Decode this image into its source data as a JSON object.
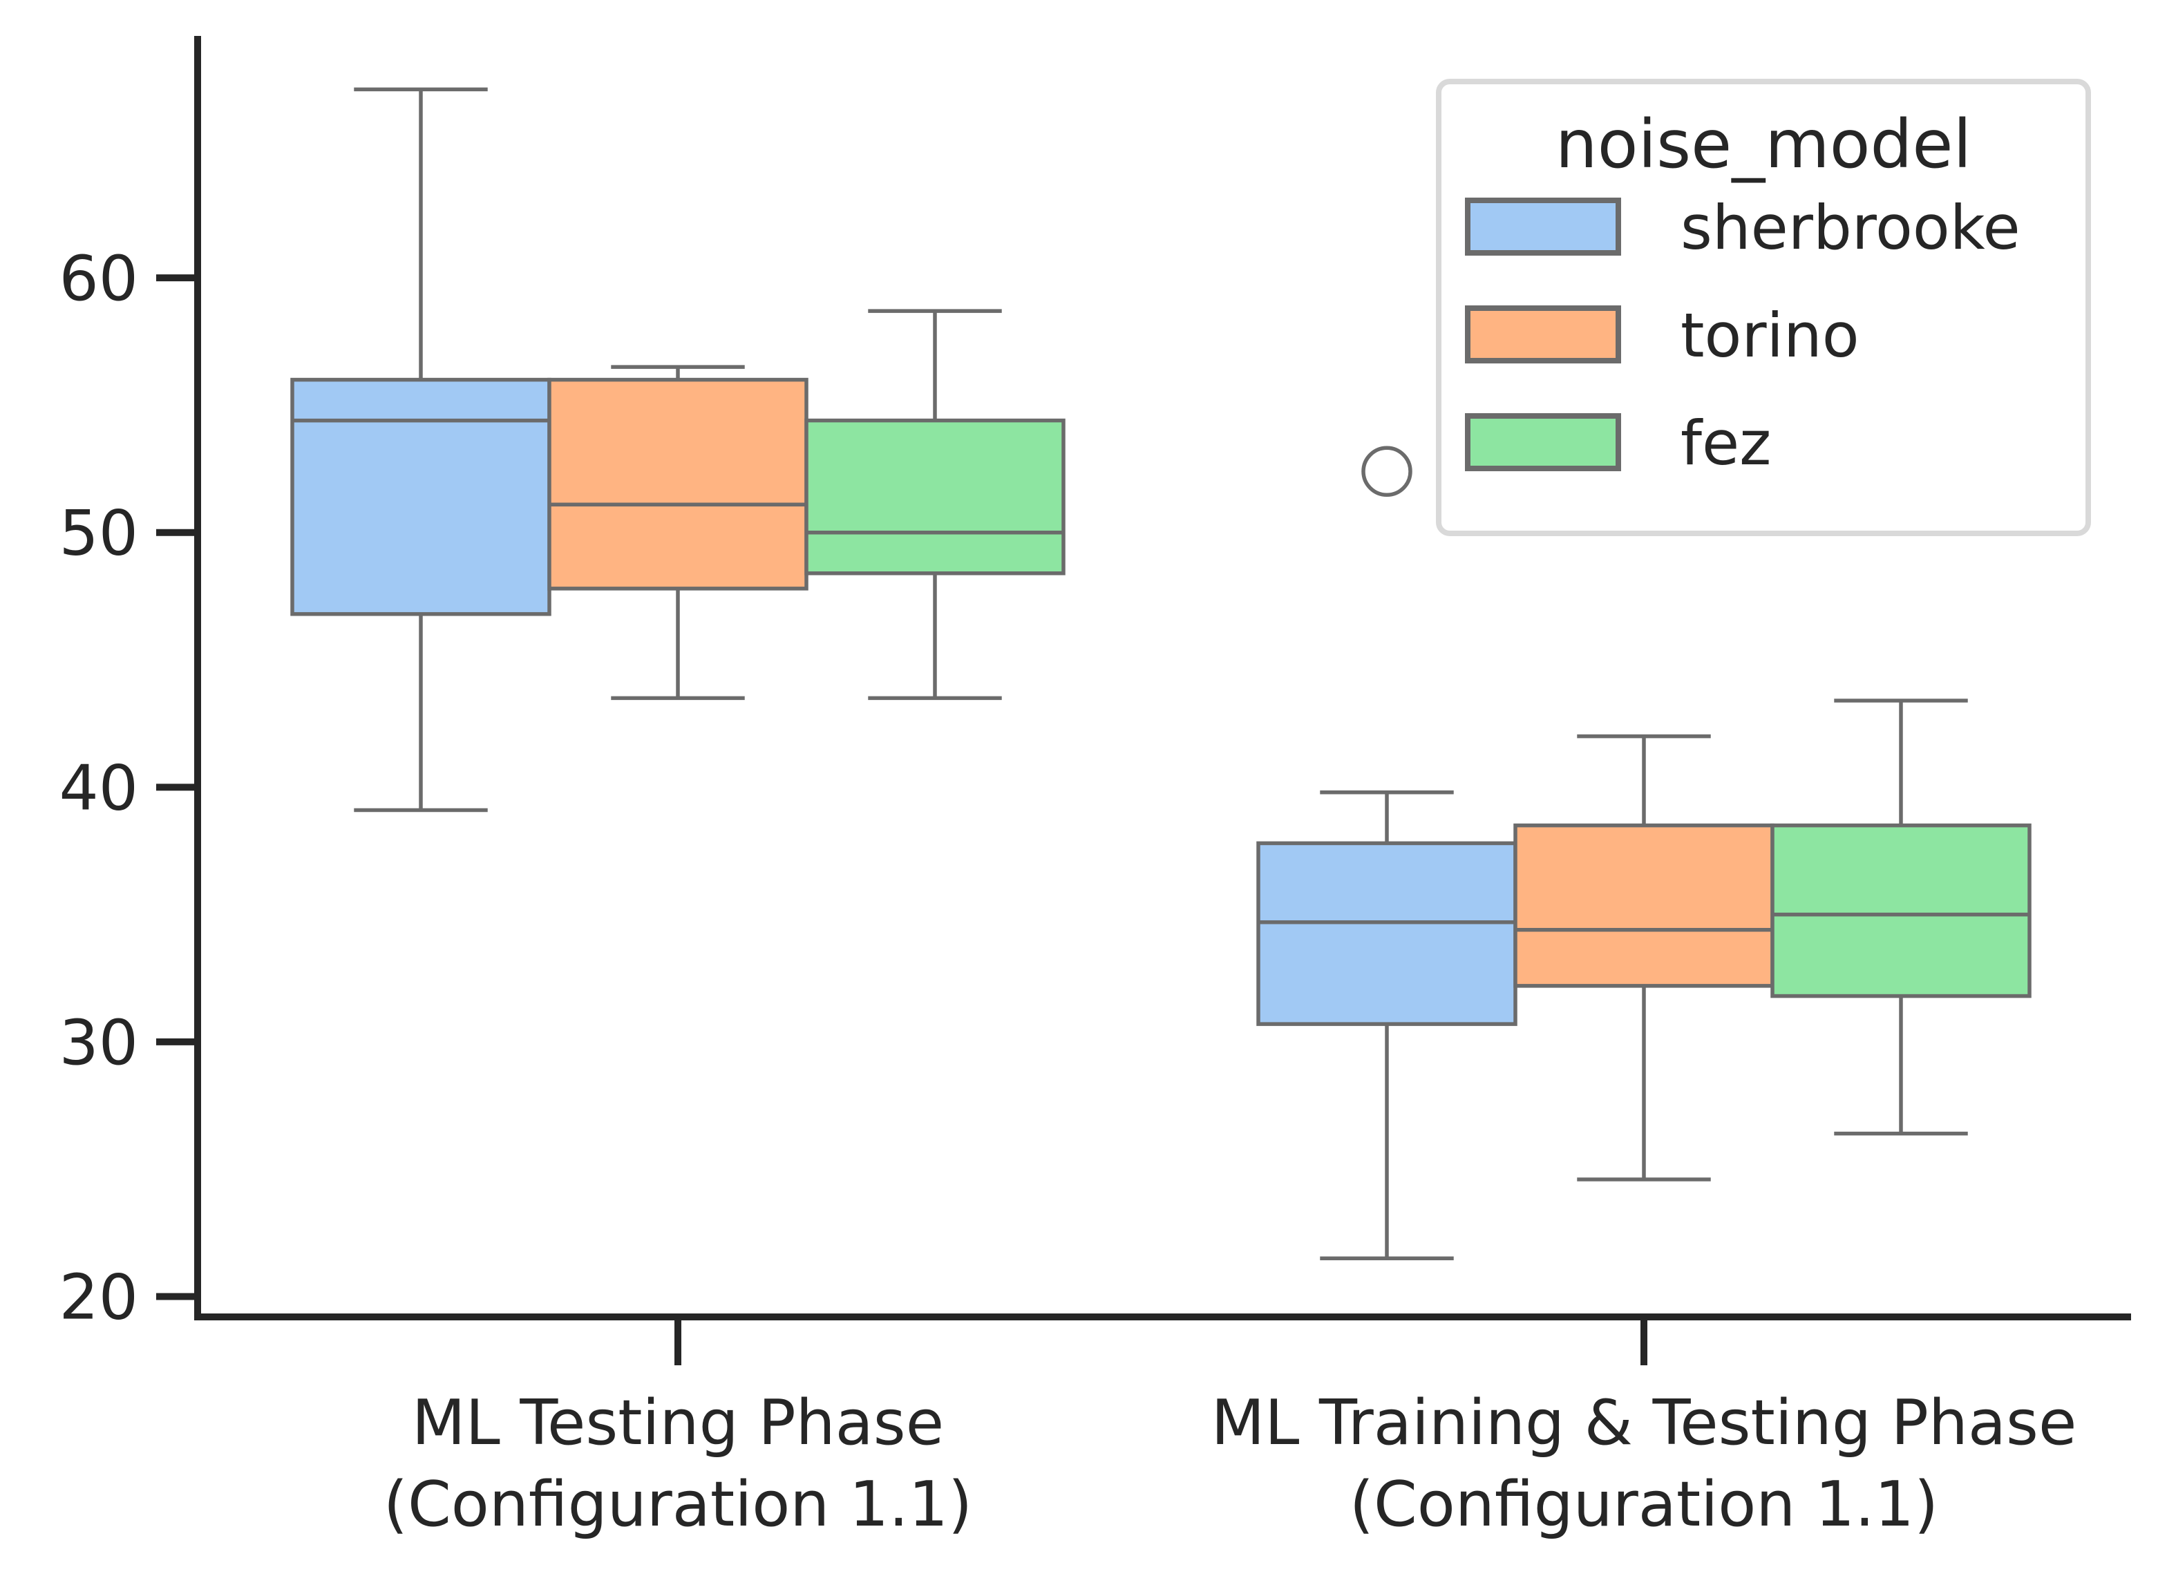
{
  "chart_data": {
    "type": "boxplot",
    "title": "",
    "xlabel": "",
    "ylabel": "",
    "ylim": [
      19.2,
      69.5
    ],
    "yticks": [
      20,
      30,
      40,
      50,
      60
    ],
    "yticks_labels": [
      "20",
      "30",
      "40",
      "50",
      "60"
    ],
    "categories": [
      [
        "ML Testing Phase",
        "(Configuration 1.1)"
      ],
      [
        "ML Training & Testing Phase",
        "(Configuration 1.1)"
      ]
    ],
    "legend": {
      "title": "noise_model",
      "position": "top-right"
    },
    "series": [
      {
        "name": "sherbrooke",
        "color": "#a1c9f4",
        "boxes": [
          {
            "whislo": 39.1,
            "q1": 46.8,
            "med": 54.4,
            "q3": 56.0,
            "whishi": 67.4,
            "fliers": []
          },
          {
            "whislo": 21.5,
            "q1": 30.7,
            "med": 34.7,
            "q3": 37.8,
            "whishi": 39.8,
            "fliers": [
              52.4
            ]
          }
        ]
      },
      {
        "name": "torino",
        "color": "#ffb482",
        "boxes": [
          {
            "whislo": 43.5,
            "q1": 47.8,
            "med": 51.1,
            "q3": 56.0,
            "whishi": 56.5,
            "fliers": []
          },
          {
            "whislo": 24.6,
            "q1": 32.2,
            "med": 34.4,
            "q3": 38.5,
            "whishi": 42.0,
            "fliers": []
          }
        ]
      },
      {
        "name": "fez",
        "color": "#8de5a1",
        "boxes": [
          {
            "whislo": 43.5,
            "q1": 48.4,
            "med": 50.0,
            "q3": 54.4,
            "whishi": 58.7,
            "fliers": []
          },
          {
            "whislo": 26.4,
            "q1": 31.8,
            "med": 35.0,
            "q3": 38.5,
            "whishi": 43.4,
            "fliers": []
          }
        ]
      }
    ]
  },
  "style": {
    "axis_color": "#262626",
    "box_edge_color": "#6b6b6b",
    "legend_frame_color": "#d9d9d9"
  }
}
